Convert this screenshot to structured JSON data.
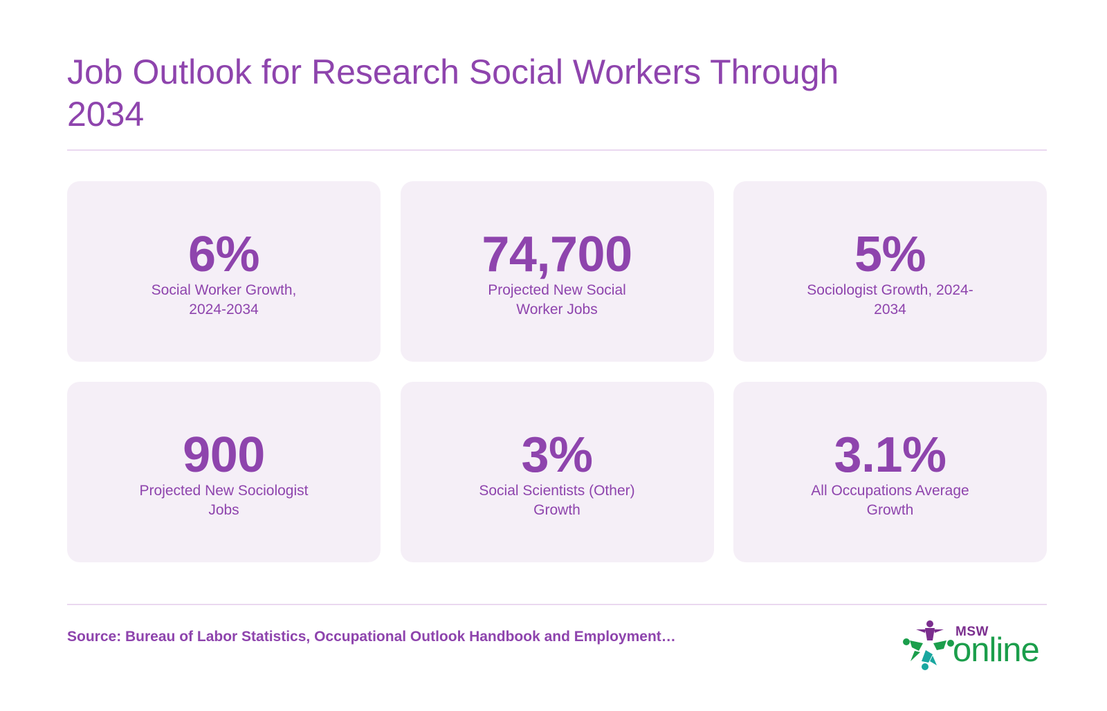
{
  "header": {
    "title": "Job Outlook for Research Social Workers Through 2034"
  },
  "stats": [
    {
      "value": "6%",
      "label": "Social Worker Growth, 2024-2034"
    },
    {
      "value": "74,700",
      "label": "Projected New Social Worker Jobs"
    },
    {
      "value": "5%",
      "label": "Sociologist Growth, 2024-2034"
    },
    {
      "value": "900",
      "label": "Projected New Sociologist Jobs"
    },
    {
      "value": "3%",
      "label": "Social Scientists (Other) Growth"
    },
    {
      "value": "3.1%",
      "label": "All Occupations Average Growth"
    }
  ],
  "footer": {
    "source": "Source: Bureau of Labor Statistics, Occupational Outlook Handbook and Employment…"
  },
  "logo": {
    "small_text": "MSW",
    "big_text": "online",
    "icon": "star-people-icon"
  },
  "colors": {
    "accent": "#8e44ad",
    "card_background": "#f5eff7",
    "divider": "#ead8f0",
    "logo_green": "#1b9e4b",
    "logo_purple": "#7b2e8e",
    "logo_teal": "#19a7a0"
  }
}
